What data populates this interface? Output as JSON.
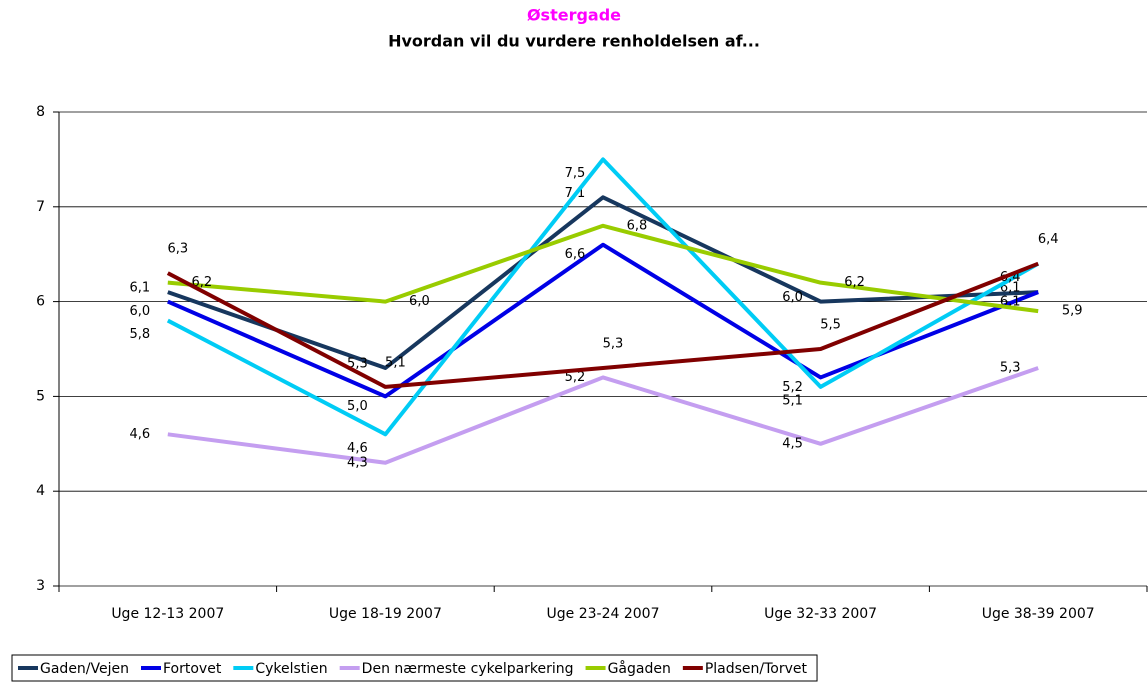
{
  "chart_data": {
    "type": "line",
    "title": "Østergade",
    "subtitle": "Hvordan vil du vurdere renholdelsen af...",
    "title_color": "#ff00ff",
    "categories": [
      "Uge 12-13 2007",
      "Uge 18-19 2007",
      "Uge 23-24 2007",
      "Uge 32-33 2007",
      "Uge 38-39 2007"
    ],
    "ylim": [
      3,
      8
    ],
    "yticks": [
      3,
      4,
      5,
      6,
      7,
      8
    ],
    "grid": true,
    "legend": "bottom",
    "series": [
      {
        "name": "Gaden/Vejen",
        "color": "#17375e",
        "values": [
          6.1,
          5.3,
          7.1,
          6.0,
          6.1
        ],
        "value_labels": [
          "6,1",
          "5,3",
          "7,1",
          "6,0",
          "6,1"
        ]
      },
      {
        "name": "Fortovet",
        "color": "#0000e6",
        "values": [
          6.0,
          5.0,
          6.6,
          5.2,
          6.1
        ],
        "value_labels": [
          "6,0",
          "5,0",
          "6,6",
          "5,2",
          "6,1"
        ]
      },
      {
        "name": "Cykelstien",
        "color": "#00ccf5",
        "values": [
          5.8,
          4.6,
          7.5,
          5.1,
          6.4
        ],
        "value_labels": [
          "5,8",
          "4,6",
          "7,5",
          "5,1",
          "6,4"
        ]
      },
      {
        "name": "Den nærmeste cykelparkering",
        "color": "#c49ef0",
        "values": [
          4.6,
          4.3,
          5.2,
          4.5,
          5.3
        ],
        "value_labels": [
          "4,6",
          "4,3",
          "5,2",
          "4,5",
          "5,3"
        ]
      },
      {
        "name": "Gågaden",
        "color": "#99cc00",
        "values": [
          6.2,
          6.0,
          6.8,
          6.2,
          5.9
        ],
        "value_labels": [
          "6,2",
          "6,0",
          "6,8",
          "6,2",
          "5,9"
        ]
      },
      {
        "name": "Pladsen/Torvet",
        "color": "#800000",
        "values": [
          6.3,
          5.1,
          5.3,
          5.5,
          6.4
        ],
        "value_labels": [
          "6,3",
          "5,1",
          "5,3",
          "5,5",
          "6,4"
        ]
      }
    ]
  }
}
